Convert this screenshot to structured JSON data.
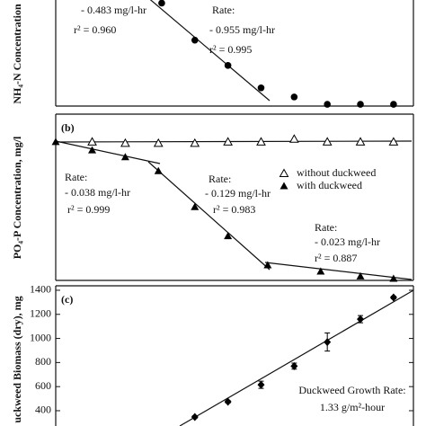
{
  "chart_data": [
    {
      "type": "scatter",
      "y_label": "NH₄-N Concentration",
      "annotations": [
        "- 0.483 mg/l-hr",
        "r² = 0.960",
        "Rate:",
        "- 0.955 mg/l-hr",
        "r² = 0.995"
      ],
      "xlim": [
        0,
        10.8
      ],
      "ylim": [
        -0.08,
        4.7
      ],
      "series": [
        {
          "marker": "circle",
          "color": "#000000",
          "x": [
            3.2,
            4.2,
            5.2,
            6.2,
            7.2,
            8.2,
            9.2,
            10.2
          ],
          "values": [
            4.56,
            2.89,
            1.75,
            0.74,
            0.33,
            0,
            0,
            0
          ]
        }
      ]
    },
    {
      "type": "scatter",
      "panel_label": "(b)",
      "y_label": "PO₄-P Concentration, mg/l",
      "annotations": [
        "Rate:",
        "- 0.038 mg/l-hr",
        "r² = 0.999",
        "Rate:",
        "- 0.129 mg/l-hr",
        "r² = 0.983",
        "Rate:",
        "- 0.023 mg/l-hr",
        "r² = 0.887"
      ],
      "xlim": [
        0,
        10.8
      ],
      "ylim": [
        0,
        1.2
      ],
      "series": [
        {
          "name": "without duckweed",
          "marker": "triangle-open",
          "color": "#000000",
          "x": [
            1.1,
            2.1,
            3.1,
            4.2,
            5.2,
            6.2,
            7.2,
            8.2,
            9.2,
            10.2
          ],
          "values": [
            1.0,
            0.99,
            0.99,
            0.99,
            1.0,
            1.0,
            1.02,
            1.0,
            1.0,
            1.0
          ]
        },
        {
          "name": "with duckweed",
          "marker": "triangle",
          "color": "#000000",
          "x": [
            0,
            1.1,
            2.1,
            3.1,
            4.2,
            5.2,
            6.4,
            8.0,
            9.2,
            10.2
          ],
          "values": [
            1.0,
            0.94,
            0.89,
            0.79,
            0.53,
            0.32,
            0.11,
            0.065,
            0.03,
            0.013
          ]
        }
      ]
    },
    {
      "type": "scatter",
      "panel_label": "(c)",
      "y_label": "uckweed Biomass (dry), mg",
      "annotations": [
        "Duckweed Growth Rate:",
        "1.33 g/m²-hour"
      ],
      "xlim": [
        0,
        10.8
      ],
      "ylim": [
        273,
        1437
      ],
      "yticks": [
        400,
        600,
        800,
        1000,
        1200,
        1400
      ],
      "series": [
        {
          "marker": "diamond",
          "color": "#000000",
          "x": [
            4.2,
            5.2,
            6.2,
            7.2,
            8.2,
            9.2,
            10.2
          ],
          "values": [
            348,
            474,
            615,
            770,
            970,
            1160,
            1340
          ],
          "errors": [
            10,
            10,
            30,
            25,
            75,
            30,
            10
          ]
        }
      ]
    }
  ]
}
